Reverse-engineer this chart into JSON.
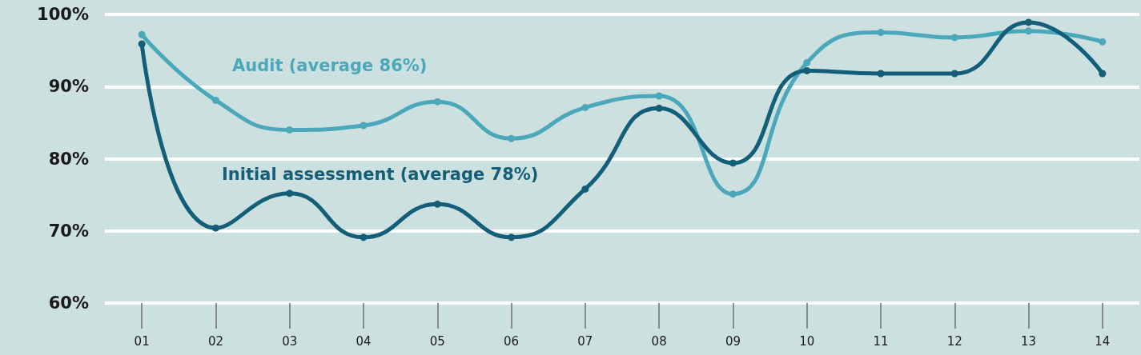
{
  "chart_data": {
    "type": "line",
    "categories": [
      "01",
      "02",
      "03",
      "04",
      "05",
      "06",
      "07",
      "08",
      "09",
      "10",
      "11",
      "12",
      "13",
      "14"
    ],
    "series": [
      {
        "name": "Audit (average 86%)",
        "color": "#4aa8ba",
        "values": [
          97.2,
          88.1,
          84,
          84.6,
          87.9,
          82.8,
          87.1,
          88.7,
          75.1,
          93.3,
          97.5,
          96.8,
          97.7,
          96.2
        ]
      },
      {
        "name": "Initial assessment (average 78%)",
        "color": "#135e78",
        "values": [
          95.9,
          70.4,
          75.2,
          69.1,
          73.7,
          69.1,
          75.8,
          87,
          79.4,
          92.2,
          91.8,
          91.8,
          98.9,
          91.8
        ]
      }
    ],
    "ylim": [
      60,
      100
    ],
    "yticks": [
      {
        "value": 60,
        "label": "60%"
      },
      {
        "value": 70,
        "label": "70%"
      },
      {
        "value": 80,
        "label": "80%"
      },
      {
        "value": 90,
        "label": "90%"
      },
      {
        "value": 100,
        "label": "100%"
      }
    ],
    "grid": "y",
    "legend": false,
    "marker": "circle",
    "line_style": "solid"
  }
}
